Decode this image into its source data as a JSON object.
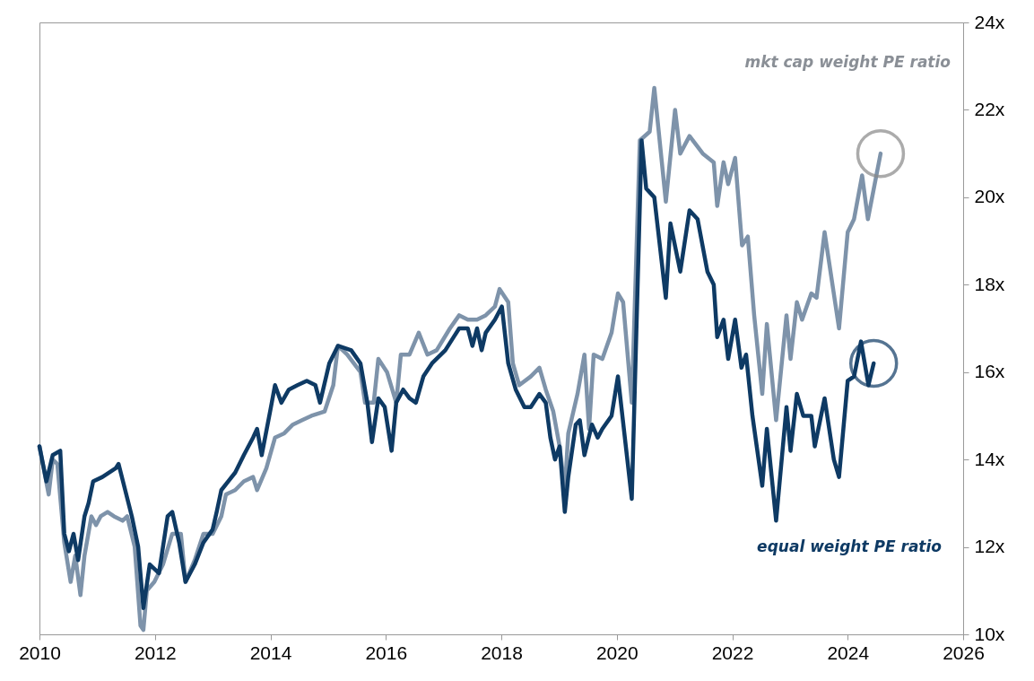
{
  "chart_data": {
    "type": "line",
    "xlim": [
      2010,
      2026
    ],
    "xticks": [
      2010,
      2012,
      2014,
      2016,
      2018,
      2020,
      2022,
      2024,
      2026
    ],
    "ylim": [
      10,
      24
    ],
    "yticks": [
      {
        "value": 10,
        "label": "10x"
      },
      {
        "value": 12,
        "label": "12x"
      },
      {
        "value": 14,
        "label": "14x"
      },
      {
        "value": 16,
        "label": "16x"
      },
      {
        "value": 18,
        "label": "18x"
      },
      {
        "value": 20,
        "label": "20x"
      },
      {
        "value": 22,
        "label": "22x"
      },
      {
        "value": 24,
        "label": "24x"
      }
    ],
    "grid": false,
    "legend": false,
    "marker": "none",
    "line_style": "solid",
    "series": [
      {
        "name": "mkt cap weight PE ratio",
        "color": "#7e93aa",
        "x": [
          2010.0,
          2010.16,
          2010.23,
          2010.31,
          2010.43,
          2010.54,
          2010.62,
          2010.71,
          2010.78,
          2010.9,
          2010.98,
          2011.06,
          2011.18,
          2011.29,
          2011.44,
          2011.52,
          2011.65,
          2011.75,
          2011.8,
          2011.86,
          2011.99,
          2012.14,
          2012.3,
          2012.45,
          2012.53,
          2012.69,
          2012.84,
          2013.0,
          2013.15,
          2013.23,
          2013.39,
          2013.54,
          2013.7,
          2013.77,
          2013.93,
          2014.08,
          2014.24,
          2014.39,
          2014.55,
          2014.71,
          2014.94,
          2015.09,
          2015.17,
          2015.33,
          2015.56,
          2015.64,
          2015.79,
          2015.87,
          2016.02,
          2016.18,
          2016.26,
          2016.41,
          2016.57,
          2016.72,
          2016.88,
          2017.11,
          2017.27,
          2017.42,
          2017.58,
          2017.73,
          2017.89,
          2017.97,
          2018.12,
          2018.2,
          2018.31,
          2018.51,
          2018.66,
          2018.77,
          2018.9,
          2019.01,
          2019.1,
          2019.16,
          2019.32,
          2019.44,
          2019.52,
          2019.6,
          2019.75,
          2019.91,
          2020.02,
          2020.11,
          2020.26,
          2020.4,
          2020.57,
          2020.65,
          2020.85,
          2021.01,
          2021.1,
          2021.26,
          2021.49,
          2021.68,
          2021.74,
          2021.85,
          2021.93,
          2022.05,
          2022.17,
          2022.27,
          2022.38,
          2022.52,
          2022.6,
          2022.76,
          2022.94,
          2023.01,
          2023.12,
          2023.21,
          2023.37,
          2023.46,
          2023.6,
          2023.85,
          2024.0,
          2024.11,
          2024.25,
          2024.35,
          2024.57
        ],
        "values": [
          14.3,
          13.2,
          14.0,
          13.9,
          12.1,
          11.2,
          11.8,
          10.9,
          11.8,
          12.7,
          12.5,
          12.7,
          12.8,
          12.7,
          12.6,
          12.7,
          12.0,
          10.2,
          10.1,
          11.0,
          11.2,
          11.6,
          12.3,
          12.3,
          11.2,
          11.7,
          12.3,
          12.3,
          12.7,
          13.2,
          13.3,
          13.5,
          13.6,
          13.3,
          13.8,
          14.5,
          14.6,
          14.8,
          14.9,
          15.0,
          15.1,
          15.7,
          16.6,
          16.4,
          16.0,
          15.3,
          15.3,
          16.3,
          16.0,
          15.3,
          16.4,
          16.4,
          16.9,
          16.4,
          16.5,
          17.0,
          17.3,
          17.2,
          17.2,
          17.3,
          17.5,
          17.9,
          17.6,
          16.2,
          15.7,
          15.9,
          16.1,
          15.6,
          15.1,
          14.3,
          13.3,
          14.6,
          15.5,
          16.4,
          14.7,
          16.4,
          16.3,
          16.9,
          17.8,
          17.6,
          15.3,
          21.3,
          21.5,
          22.5,
          19.9,
          22.0,
          21.0,
          21.4,
          21.0,
          20.8,
          19.8,
          20.8,
          20.3,
          20.9,
          18.9,
          19.1,
          17.3,
          15.5,
          17.1,
          14.9,
          17.3,
          16.3,
          17.6,
          17.2,
          17.8,
          17.7,
          19.2,
          17.0,
          19.2,
          19.5,
          20.5,
          19.5,
          21.0
        ]
      },
      {
        "name": "equal weight PE ratio",
        "color": "#0e3a64",
        "x": [
          2010.0,
          2010.12,
          2010.23,
          2010.36,
          2010.43,
          2010.51,
          2010.59,
          2010.67,
          2010.78,
          2010.85,
          2010.93,
          2011.09,
          2011.32,
          2011.37,
          2011.6,
          2011.71,
          2011.8,
          2011.91,
          2012.07,
          2012.22,
          2012.3,
          2012.42,
          2012.53,
          2012.69,
          2012.84,
          2013.0,
          2013.07,
          2013.15,
          2013.39,
          2013.54,
          2013.7,
          2013.77,
          2013.85,
          2014.01,
          2014.08,
          2014.19,
          2014.32,
          2014.47,
          2014.63,
          2014.78,
          2014.86,
          2015.02,
          2015.17,
          2015.4,
          2015.56,
          2015.68,
          2015.76,
          2015.87,
          2015.98,
          2016.1,
          2016.18,
          2016.3,
          2016.41,
          2016.52,
          2016.65,
          2016.8,
          2017.03,
          2017.27,
          2017.42,
          2017.5,
          2017.58,
          2017.66,
          2017.73,
          2017.89,
          2018.01,
          2018.12,
          2018.25,
          2018.4,
          2018.51,
          2018.66,
          2018.77,
          2018.85,
          2018.93,
          2019.01,
          2019.1,
          2019.16,
          2019.29,
          2019.36,
          2019.44,
          2019.57,
          2019.67,
          2019.75,
          2019.91,
          2020.02,
          2020.26,
          2020.43,
          2020.51,
          2020.65,
          2020.85,
          2020.93,
          2021.1,
          2021.26,
          2021.4,
          2021.57,
          2021.68,
          2021.74,
          2021.85,
          2021.93,
          2022.05,
          2022.16,
          2022.24,
          2022.35,
          2022.52,
          2022.6,
          2022.76,
          2022.94,
          2023.01,
          2023.12,
          2023.23,
          2023.37,
          2023.43,
          2023.6,
          2023.76,
          2023.85,
          2024.0,
          2024.11,
          2024.23,
          2024.36,
          2024.45
        ],
        "values": [
          14.3,
          13.5,
          14.1,
          14.2,
          12.3,
          11.9,
          12.3,
          11.7,
          12.7,
          13.0,
          13.5,
          13.6,
          13.8,
          13.9,
          12.7,
          12.0,
          10.6,
          11.6,
          11.4,
          12.7,
          12.8,
          12.1,
          11.2,
          11.6,
          12.1,
          12.4,
          12.8,
          13.3,
          13.7,
          14.1,
          14.5,
          14.7,
          14.1,
          15.2,
          15.7,
          15.3,
          15.6,
          15.7,
          15.8,
          15.7,
          15.3,
          16.2,
          16.6,
          16.5,
          16.2,
          15.3,
          14.4,
          15.4,
          15.2,
          14.2,
          15.3,
          15.6,
          15.4,
          15.3,
          15.9,
          16.2,
          16.5,
          17.0,
          17.0,
          16.6,
          17.0,
          16.5,
          16.9,
          17.2,
          17.5,
          16.2,
          15.6,
          15.2,
          15.2,
          15.5,
          15.3,
          14.5,
          14.0,
          14.3,
          12.8,
          13.6,
          14.8,
          14.9,
          14.1,
          14.8,
          14.5,
          14.7,
          15.0,
          15.9,
          13.1,
          21.3,
          20.2,
          20.0,
          17.7,
          19.4,
          18.3,
          19.7,
          19.5,
          18.3,
          18.0,
          16.8,
          17.2,
          16.3,
          17.2,
          16.1,
          16.4,
          15.0,
          13.4,
          14.7,
          12.6,
          15.2,
          14.2,
          15.5,
          15.0,
          15.0,
          14.3,
          15.4,
          14.0,
          13.6,
          15.8,
          15.9,
          16.7,
          15.7,
          16.2
        ]
      }
    ]
  }
}
